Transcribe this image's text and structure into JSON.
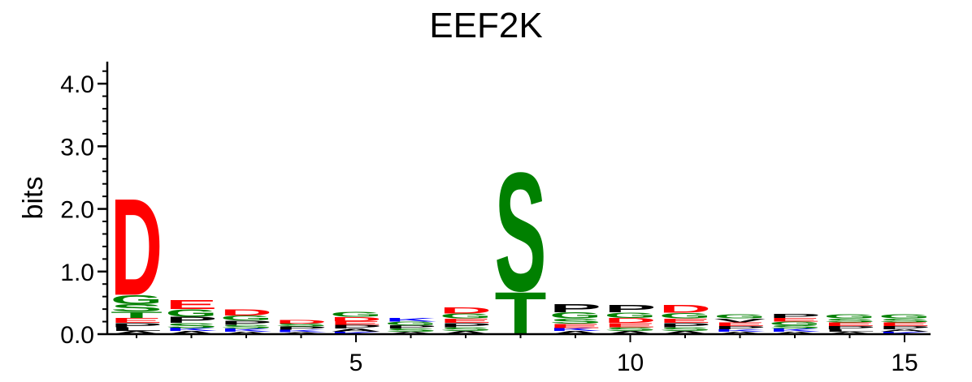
{
  "chart_data": {
    "type": "sequence-logo",
    "title": "EEF2K",
    "ylabel": "bits",
    "xlabel": "",
    "ylim": [
      0,
      4.3
    ],
    "y_ticks": [
      "0.0",
      "1.0",
      "2.0",
      "3.0",
      "4.0"
    ],
    "x_ticks": [
      "5",
      "10",
      "15"
    ],
    "x_tick_positions": [
      5,
      10,
      15
    ],
    "grid": false,
    "colors": {
      "D": "#ff0000",
      "E": "#ff0000",
      "S": "#008000",
      "T": "#008000",
      "G": "#008000",
      "P": "#000000",
      "L": "#000000",
      "A": "#000000",
      "V": "#000000",
      "K": "#0000ff",
      "R": "#0000ff",
      "N": "#008000",
      "Q": "#008000"
    },
    "positions": [
      {
        "pos": 1,
        "letters": [
          {
            "l": "A",
            "h": 0.05
          },
          {
            "l": "L",
            "h": 0.06
          },
          {
            "l": "P",
            "h": 0.07
          },
          {
            "l": "E",
            "h": 0.08
          },
          {
            "l": "T",
            "h": 0.1
          },
          {
            "l": "S",
            "h": 0.12
          },
          {
            "l": "G",
            "h": 0.15
          },
          {
            "l": "D",
            "h": 1.6
          }
        ]
      },
      {
        "pos": 2,
        "letters": [
          {
            "l": "A",
            "h": 0.05
          },
          {
            "l": "K",
            "h": 0.05
          },
          {
            "l": "S",
            "h": 0.08
          },
          {
            "l": "P",
            "h": 0.1
          },
          {
            "l": "G",
            "h": 0.12
          },
          {
            "l": "E",
            "h": 0.15
          }
        ]
      },
      {
        "pos": 3,
        "letters": [
          {
            "l": "A",
            "h": 0.04
          },
          {
            "l": "K",
            "h": 0.05
          },
          {
            "l": "S",
            "h": 0.06
          },
          {
            "l": "P",
            "h": 0.07
          },
          {
            "l": "G",
            "h": 0.08
          },
          {
            "l": "D",
            "h": 0.1
          }
        ]
      },
      {
        "pos": 4,
        "letters": [
          {
            "l": "A",
            "h": 0.03
          },
          {
            "l": "K",
            "h": 0.04
          },
          {
            "l": "P",
            "h": 0.05
          },
          {
            "l": "S",
            "h": 0.05
          },
          {
            "l": "D",
            "h": 0.06
          }
        ]
      },
      {
        "pos": 5,
        "letters": [
          {
            "l": "K",
            "h": 0.04
          },
          {
            "l": "A",
            "h": 0.05
          },
          {
            "l": "P",
            "h": 0.06
          },
          {
            "l": "E",
            "h": 0.06
          },
          {
            "l": "D",
            "h": 0.07
          },
          {
            "l": "G",
            "h": 0.08
          }
        ]
      },
      {
        "pos": 6,
        "letters": [
          {
            "l": "A",
            "h": 0.04
          },
          {
            "l": "S",
            "h": 0.05
          },
          {
            "l": "P",
            "h": 0.05
          },
          {
            "l": "G",
            "h": 0.06
          },
          {
            "l": "K",
            "h": 0.06
          }
        ]
      },
      {
        "pos": 7,
        "letters": [
          {
            "l": "A",
            "h": 0.05
          },
          {
            "l": "S",
            "h": 0.06
          },
          {
            "l": "P",
            "h": 0.07
          },
          {
            "l": "E",
            "h": 0.07
          },
          {
            "l": "G",
            "h": 0.08
          },
          {
            "l": "D",
            "h": 0.1
          }
        ]
      },
      {
        "pos": 8,
        "letters": [
          {
            "l": "T",
            "h": 0.7
          },
          {
            "l": "S",
            "h": 1.96
          }
        ]
      },
      {
        "pos": 9,
        "letters": [
          {
            "l": "A",
            "h": 0.05
          },
          {
            "l": "K",
            "h": 0.05
          },
          {
            "l": "E",
            "h": 0.07
          },
          {
            "l": "S",
            "h": 0.08
          },
          {
            "l": "G",
            "h": 0.1
          },
          {
            "l": "P",
            "h": 0.14
          }
        ]
      },
      {
        "pos": 10,
        "letters": [
          {
            "l": "A",
            "h": 0.05
          },
          {
            "l": "S",
            "h": 0.06
          },
          {
            "l": "E",
            "h": 0.07
          },
          {
            "l": "D",
            "h": 0.08
          },
          {
            "l": "G",
            "h": 0.09
          },
          {
            "l": "P",
            "h": 0.12
          }
        ]
      },
      {
        "pos": 11,
        "letters": [
          {
            "l": "A",
            "h": 0.05
          },
          {
            "l": "S",
            "h": 0.06
          },
          {
            "l": "P",
            "h": 0.07
          },
          {
            "l": "E",
            "h": 0.07
          },
          {
            "l": "G",
            "h": 0.09
          },
          {
            "l": "D",
            "h": 0.13
          }
        ]
      },
      {
        "pos": 12,
        "letters": [
          {
            "l": "A",
            "h": 0.04
          },
          {
            "l": "K",
            "h": 0.04
          },
          {
            "l": "P",
            "h": 0.05
          },
          {
            "l": "E",
            "h": 0.06
          },
          {
            "l": "V",
            "h": 0.06
          },
          {
            "l": "G",
            "h": 0.07
          }
        ]
      },
      {
        "pos": 13,
        "letters": [
          {
            "l": "A",
            "h": 0.04
          },
          {
            "l": "K",
            "h": 0.05
          },
          {
            "l": "S",
            "h": 0.05
          },
          {
            "l": "G",
            "h": 0.06
          },
          {
            "l": "E",
            "h": 0.06
          },
          {
            "l": "P",
            "h": 0.07
          }
        ]
      },
      {
        "pos": 14,
        "letters": [
          {
            "l": "A",
            "h": 0.04
          },
          {
            "l": "L",
            "h": 0.04
          },
          {
            "l": "P",
            "h": 0.05
          },
          {
            "l": "E",
            "h": 0.06
          },
          {
            "l": "S",
            "h": 0.06
          },
          {
            "l": "G",
            "h": 0.07
          }
        ]
      },
      {
        "pos": 15,
        "letters": [
          {
            "l": "K",
            "h": 0.04
          },
          {
            "l": "A",
            "h": 0.04
          },
          {
            "l": "P",
            "h": 0.05
          },
          {
            "l": "E",
            "h": 0.06
          },
          {
            "l": "S",
            "h": 0.06
          },
          {
            "l": "G",
            "h": 0.07
          }
        ]
      }
    ]
  }
}
